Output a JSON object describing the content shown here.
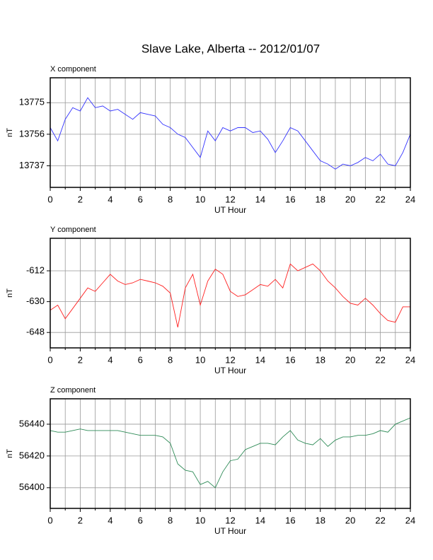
{
  "title": "Slave Lake, Alberta -- 2012/01/07",
  "chart_data": [
    {
      "type": "line",
      "title": "X component",
      "xlabel": "UT Hour",
      "ylabel": "nT",
      "color": "#3333ff",
      "x": [
        0,
        0.5,
        1,
        1.5,
        2,
        2.5,
        3,
        3.5,
        4,
        4.5,
        5,
        5.5,
        6,
        6.5,
        7,
        7.5,
        8,
        8.5,
        9,
        9.5,
        10,
        10.5,
        11,
        11.5,
        12,
        12.5,
        13,
        13.5,
        14,
        14.5,
        15,
        15.5,
        16,
        16.5,
        17,
        17.5,
        18,
        18.5,
        19,
        19.5,
        20,
        20.5,
        21,
        21.5,
        22,
        22.5,
        23,
        23.5,
        24
      ],
      "values": [
        13760,
        13752,
        13765,
        13772,
        13770,
        13778,
        13772,
        13773,
        13770,
        13771,
        13768,
        13765,
        13769,
        13768,
        13767,
        13762,
        13760,
        13756,
        13754,
        13748,
        13742,
        13758,
        13752,
        13760,
        13758,
        13760,
        13760,
        13757,
        13758,
        13753,
        13745,
        13752,
        13760,
        13758,
        13752,
        13746,
        13740,
        13738,
        13735,
        13738,
        13737,
        13739,
        13742,
        13740,
        13744,
        13738,
        13737,
        13745,
        13756
      ],
      "xlim": [
        0,
        24
      ],
      "xticks": [
        0,
        2,
        4,
        6,
        8,
        10,
        12,
        14,
        16,
        18,
        20,
        22,
        24
      ],
      "x_minor_ticks": [
        1,
        3,
        5,
        7,
        9,
        11,
        13,
        15,
        17,
        19,
        21,
        23
      ],
      "ylim": [
        13724,
        13790
      ],
      "yticks": [
        13737,
        13756,
        13775
      ],
      "grid": true
    },
    {
      "type": "line",
      "title": "Y component",
      "xlabel": "UT Hour",
      "ylabel": "nT",
      "color": "#ff2020",
      "x": [
        0,
        0.5,
        1,
        1.5,
        2,
        2.5,
        3,
        3.5,
        4,
        4.5,
        5,
        5.5,
        6,
        6.5,
        7,
        7.5,
        8,
        8.5,
        9,
        9.5,
        10,
        10.5,
        11,
        11.5,
        12,
        12.5,
        13,
        13.5,
        14,
        14.5,
        15,
        15.5,
        16,
        16.5,
        17,
        17.5,
        18,
        18.5,
        19,
        19.5,
        20,
        20.5,
        21,
        21.5,
        22,
        22.5,
        23,
        23.5,
        24
      ],
      "values": [
        -635,
        -632,
        -640,
        -634,
        -628,
        -622,
        -624,
        -619,
        -614,
        -618,
        -620,
        -619,
        -617,
        -618,
        -619,
        -621,
        -625,
        -645,
        -622,
        -614,
        -632,
        -618,
        -611,
        -614,
        -624,
        -627,
        -626,
        -623,
        -620,
        -621,
        -617,
        -622,
        -608,
        -612,
        -610,
        -608,
        -612,
        -618,
        -622,
        -627,
        -631,
        -632,
        -628,
        -632,
        -637,
        -641,
        -642,
        -633,
        -633
      ],
      "xlim": [
        0,
        24
      ],
      "xticks": [
        0,
        2,
        4,
        6,
        8,
        10,
        12,
        14,
        16,
        18,
        20,
        22,
        24
      ],
      "x_minor_ticks": [
        1,
        3,
        5,
        7,
        9,
        11,
        13,
        15,
        17,
        19,
        21,
        23
      ],
      "ylim": [
        -657,
        -593
      ],
      "yticks": [
        -612,
        -630,
        -648
      ],
      "grid": true
    },
    {
      "type": "line",
      "title": "Z component",
      "xlabel": "UT Hour",
      "ylabel": "nT",
      "color": "#2e8b57",
      "x": [
        0,
        0.5,
        1,
        1.5,
        2,
        2.5,
        3,
        3.5,
        4,
        4.5,
        5,
        5.5,
        6,
        6.5,
        7,
        7.5,
        8,
        8.5,
        9,
        9.5,
        10,
        10.5,
        11,
        11.5,
        12,
        12.5,
        13,
        13.5,
        14,
        14.5,
        15,
        15.5,
        16,
        16.5,
        17,
        17.5,
        18,
        18.5,
        19,
        19.5,
        20,
        20.5,
        21,
        21.5,
        22,
        22.5,
        23,
        23.5,
        24
      ],
      "values": [
        56436,
        56435,
        56435,
        56436,
        56437,
        56436,
        56436,
        56436,
        56436,
        56436,
        56435,
        56434,
        56433,
        56433,
        56433,
        56432,
        56428,
        56415,
        56411,
        56410,
        56402,
        56404,
        56400,
        56410,
        56417,
        56418,
        56424,
        56426,
        56428,
        56428,
        56427,
        56432,
        56436,
        56430,
        56428,
        56427,
        56431,
        56426,
        56430,
        56432,
        56432,
        56433,
        56433,
        56434,
        56436,
        56435,
        56440,
        56442,
        56444
      ],
      "xlim": [
        0,
        24
      ],
      "xticks": [
        0,
        2,
        4,
        6,
        8,
        10,
        12,
        14,
        16,
        18,
        20,
        22,
        24
      ],
      "x_minor_ticks": [
        1,
        3,
        5,
        7,
        9,
        11,
        13,
        15,
        17,
        19,
        21,
        23
      ],
      "ylim": [
        56387,
        56456
      ],
      "yticks": [
        56400,
        56420,
        56440
      ],
      "grid": true
    }
  ]
}
